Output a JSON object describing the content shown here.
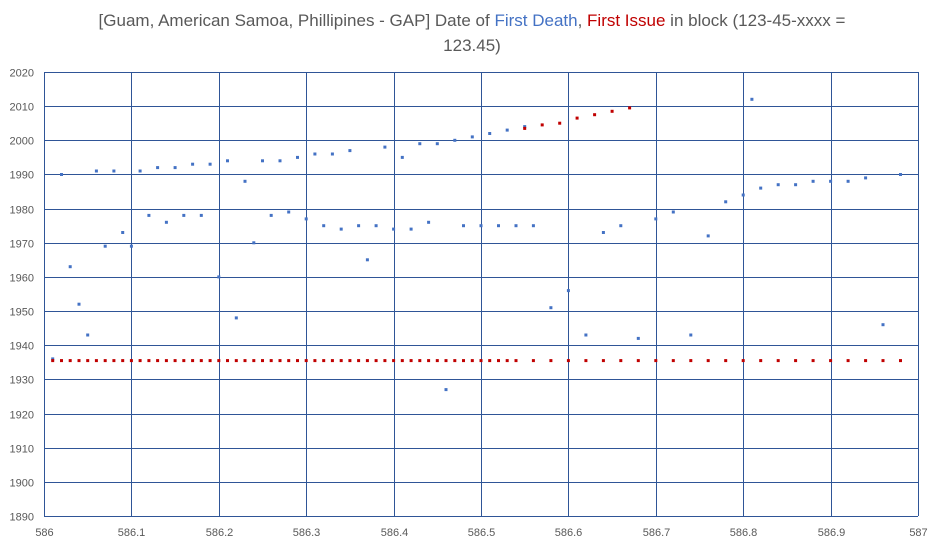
{
  "colors": {
    "blue": "#4472c4",
    "red": "#c00000",
    "grid": "#2f5597",
    "text": "#595959"
  },
  "title": {
    "prefix": "[Guam, American Samoa, Phillipines - GAP] Date of ",
    "first_death": "First Death",
    "sep": ", ",
    "first_issue": "First Issue",
    "suffix": " in block (123-45-xxxx =",
    "line2": "123.45)"
  },
  "chart_data": {
    "type": "scatter",
    "title": "[Guam, American Samoa, Phillipines - GAP] Date of First Death, First Issue in block (123-45-xxxx = 123.45)",
    "xlim": [
      586,
      587
    ],
    "ylim": [
      1890,
      2020
    ],
    "xticks": [
      "586",
      "586.1",
      "586.2",
      "586.3",
      "586.4",
      "586.5",
      "586.6",
      "586.7",
      "586.8",
      "586.9",
      "587"
    ],
    "yticks": [
      "1890",
      "1900",
      "1910",
      "1920",
      "1930",
      "1940",
      "1950",
      "1960",
      "1970",
      "1980",
      "1990",
      "2000",
      "2010",
      "2020"
    ],
    "grid": true,
    "series": [
      {
        "name": "First Death",
        "color": "#4472c4",
        "points": [
          [
            586.01,
            1936
          ],
          [
            586.02,
            1990
          ],
          [
            586.03,
            1963
          ],
          [
            586.04,
            1952
          ],
          [
            586.05,
            1943
          ],
          [
            586.06,
            1991
          ],
          [
            586.07,
            1969
          ],
          [
            586.08,
            1991
          ],
          [
            586.09,
            1973
          ],
          [
            586.1,
            1969
          ],
          [
            586.11,
            1991
          ],
          [
            586.12,
            1978
          ],
          [
            586.13,
            1992
          ],
          [
            586.14,
            1976
          ],
          [
            586.15,
            1992
          ],
          [
            586.16,
            1978
          ],
          [
            586.17,
            1993
          ],
          [
            586.18,
            1978
          ],
          [
            586.19,
            1993
          ],
          [
            586.2,
            1960
          ],
          [
            586.21,
            1994
          ],
          [
            586.22,
            1948
          ],
          [
            586.23,
            1988
          ],
          [
            586.24,
            1970
          ],
          [
            586.25,
            1994
          ],
          [
            586.26,
            1978
          ],
          [
            586.27,
            1994
          ],
          [
            586.28,
            1979
          ],
          [
            586.29,
            1995
          ],
          [
            586.3,
            1977
          ],
          [
            586.31,
            1996
          ],
          [
            586.32,
            1975
          ],
          [
            586.33,
            1996
          ],
          [
            586.34,
            1974
          ],
          [
            586.35,
            1997
          ],
          [
            586.36,
            1975
          ],
          [
            586.37,
            1965
          ],
          [
            586.38,
            1975
          ],
          [
            586.39,
            1998
          ],
          [
            586.4,
            1974
          ],
          [
            586.41,
            1995
          ],
          [
            586.42,
            1974
          ],
          [
            586.43,
            1999
          ],
          [
            586.44,
            1976
          ],
          [
            586.45,
            1999
          ],
          [
            586.46,
            1927
          ],
          [
            586.47,
            2000
          ],
          [
            586.48,
            1975
          ],
          [
            586.49,
            2001
          ],
          [
            586.5,
            1975
          ],
          [
            586.51,
            2002
          ],
          [
            586.52,
            1975
          ],
          [
            586.53,
            2003
          ],
          [
            586.54,
            1975
          ],
          [
            586.55,
            2004
          ],
          [
            586.56,
            1975
          ],
          [
            586.58,
            1951
          ],
          [
            586.6,
            1956
          ],
          [
            586.62,
            1943
          ],
          [
            586.64,
            1973
          ],
          [
            586.66,
            1975
          ],
          [
            586.68,
            1942
          ],
          [
            586.7,
            1977
          ],
          [
            586.72,
            1979
          ],
          [
            586.74,
            1943
          ],
          [
            586.76,
            1972
          ],
          [
            586.78,
            1982
          ],
          [
            586.8,
            1984
          ],
          [
            586.81,
            2012
          ],
          [
            586.82,
            1986
          ],
          [
            586.84,
            1987
          ],
          [
            586.86,
            1987
          ],
          [
            586.88,
            1988
          ],
          [
            586.9,
            1988
          ],
          [
            586.92,
            1988
          ],
          [
            586.94,
            1989
          ],
          [
            586.96,
            1946
          ],
          [
            586.98,
            1990
          ]
        ]
      },
      {
        "name": "First Issue",
        "color": "#c00000",
        "points": [
          [
            586.01,
            1935.5
          ],
          [
            586.02,
            1935.5
          ],
          [
            586.03,
            1935.5
          ],
          [
            586.04,
            1935.5
          ],
          [
            586.05,
            1935.5
          ],
          [
            586.06,
            1935.5
          ],
          [
            586.07,
            1935.5
          ],
          [
            586.08,
            1935.5
          ],
          [
            586.09,
            1935.5
          ],
          [
            586.1,
            1935.5
          ],
          [
            586.11,
            1935.5
          ],
          [
            586.12,
            1935.5
          ],
          [
            586.13,
            1935.5
          ],
          [
            586.14,
            1935.5
          ],
          [
            586.15,
            1935.5
          ],
          [
            586.16,
            1935.5
          ],
          [
            586.17,
            1935.5
          ],
          [
            586.18,
            1935.5
          ],
          [
            586.19,
            1935.5
          ],
          [
            586.2,
            1935.5
          ],
          [
            586.21,
            1935.5
          ],
          [
            586.22,
            1935.5
          ],
          [
            586.23,
            1935.5
          ],
          [
            586.24,
            1935.5
          ],
          [
            586.25,
            1935.5
          ],
          [
            586.26,
            1935.5
          ],
          [
            586.27,
            1935.5
          ],
          [
            586.28,
            1935.5
          ],
          [
            586.29,
            1935.5
          ],
          [
            586.3,
            1935.5
          ],
          [
            586.31,
            1935.5
          ],
          [
            586.32,
            1935.5
          ],
          [
            586.33,
            1935.5
          ],
          [
            586.34,
            1935.5
          ],
          [
            586.35,
            1935.5
          ],
          [
            586.36,
            1935.5
          ],
          [
            586.37,
            1935.5
          ],
          [
            586.38,
            1935.5
          ],
          [
            586.39,
            1935.5
          ],
          [
            586.4,
            1935.5
          ],
          [
            586.41,
            1935.5
          ],
          [
            586.42,
            1935.5
          ],
          [
            586.43,
            1935.5
          ],
          [
            586.44,
            1935.5
          ],
          [
            586.45,
            1935.5
          ],
          [
            586.46,
            1935.5
          ],
          [
            586.47,
            1935.5
          ],
          [
            586.48,
            1935.5
          ],
          [
            586.49,
            1935.5
          ],
          [
            586.5,
            1935.5
          ],
          [
            586.51,
            1935.5
          ],
          [
            586.52,
            1935.5
          ],
          [
            586.53,
            1935.5
          ],
          [
            586.54,
            1935.5
          ],
          [
            586.55,
            2003.5
          ],
          [
            586.56,
            1935.5
          ],
          [
            586.57,
            2004.5
          ],
          [
            586.58,
            1935.5
          ],
          [
            586.59,
            2005
          ],
          [
            586.6,
            1935.5
          ],
          [
            586.61,
            2006.5
          ],
          [
            586.62,
            1935.5
          ],
          [
            586.63,
            2007.5
          ],
          [
            586.64,
            1935.5
          ],
          [
            586.65,
            2008.5
          ],
          [
            586.66,
            1935.5
          ],
          [
            586.67,
            2009.5
          ],
          [
            586.68,
            1935.5
          ],
          [
            586.7,
            1935.5
          ],
          [
            586.72,
            1935.5
          ],
          [
            586.74,
            1935.5
          ],
          [
            586.76,
            1935.5
          ],
          [
            586.78,
            1935.5
          ],
          [
            586.8,
            1935.5
          ],
          [
            586.82,
            1935.5
          ],
          [
            586.84,
            1935.5
          ],
          [
            586.86,
            1935.5
          ],
          [
            586.88,
            1935.5
          ],
          [
            586.9,
            1935.5
          ],
          [
            586.92,
            1935.5
          ],
          [
            586.94,
            1935.5
          ],
          [
            586.96,
            1935.5
          ],
          [
            586.98,
            1935.5
          ]
        ]
      }
    ]
  }
}
